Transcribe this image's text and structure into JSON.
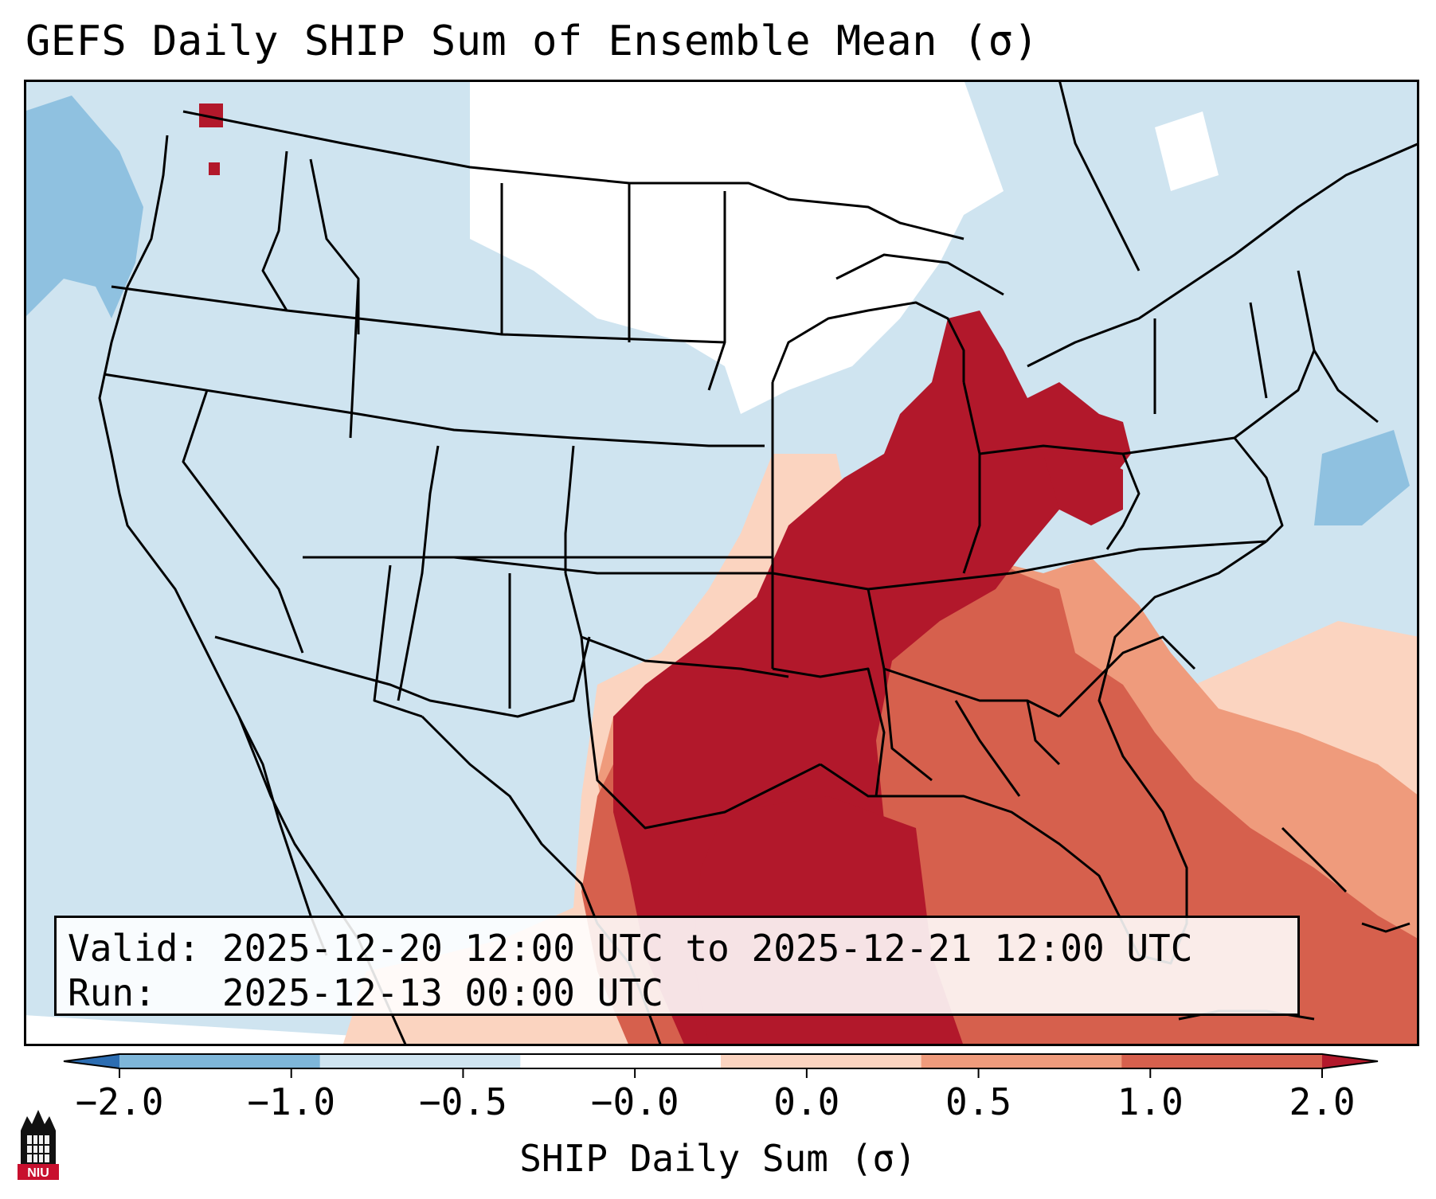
{
  "title": "GEFS Daily SHIP Sum of Ensemble Mean (σ)",
  "info": {
    "valid_label": "Valid:",
    "valid_value": "2025-12-20 12:00 UTC to 2025-12-21 12:00 UTC",
    "run_label": "Run:",
    "run_value": "2025-12-13 00:00 UTC"
  },
  "colorbar": {
    "label": "SHIP Daily Sum (σ)",
    "tick_labels": [
      "−2.0",
      "−1.0",
      "−0.5",
      "−0.0",
      "0.0",
      "0.5",
      "1.0",
      "2.0"
    ],
    "colors": [
      "#2c6db2",
      "#7eb6d9",
      "#cfe4f0",
      "#ffffff",
      "#fbd4c0",
      "#ef9b7c",
      "#d6604d",
      "#b2182b"
    ]
  },
  "logo": {
    "text": "NIU",
    "color": "#c8102e"
  },
  "legend_scale": {
    "units": "sigma (standard deviations)",
    "categories": [
      "< -2.0",
      "-2.0 to -1.0",
      "-1.0 to -0.5",
      "-0.5 to 0.0",
      "0.0 to 0.5",
      "0.5 to 1.0",
      "1.0 to 2.0",
      "> 2.0"
    ]
  }
}
